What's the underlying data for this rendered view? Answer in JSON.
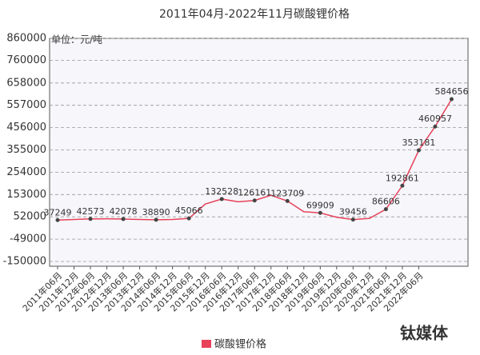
{
  "chart_data": {
    "type": "line",
    "title": "2011年04月-2022年11月碳酸锂价格",
    "y_label": "单位：元/吨",
    "watermark": "钛媒体",
    "categories": [
      "2011年06月",
      "2011年12月",
      "2012年06月",
      "2012年12月",
      "2013年06月",
      "2013年12月",
      "2014年06月",
      "2014年12月",
      "2015年06月",
      "2015年12月",
      "2016年06月",
      "2016年12月",
      "2017年06月",
      "2017年12月",
      "2018年06月",
      "2018年12月",
      "2019年06月",
      "2019年12月",
      "2020年06月",
      "2020年12月",
      "2021年06月",
      "2021年12月",
      "2022年06月",
      null,
      null
    ],
    "series": [
      {
        "name": "碳酸锂价格",
        "color": "#e8425a",
        "values": [
          37249,
          40000,
          42573,
          43000,
          42078,
          40000,
          38890,
          40000,
          45066,
          110000,
          132528,
          120000,
          126161,
          150000,
          123709,
          75000,
          69909,
          50000,
          39456,
          45000,
          86606,
          192861,
          353181,
          460957,
          584656
        ],
        "value_labels": [
          "37249",
          null,
          "42573",
          null,
          "42078",
          null,
          "38890",
          null,
          "45066",
          null,
          "132528",
          null,
          "126161",
          null,
          "123709",
          null,
          "69909",
          null,
          "39456",
          null,
          "86606",
          "192861",
          "353181",
          "460957",
          "584656"
        ]
      }
    ],
    "ylim": [
      -150000,
      860000
    ],
    "yticks": [
      -150000,
      -49000,
      52000,
      153000,
      254000,
      355000,
      456000,
      557000,
      658000,
      760000,
      860000
    ],
    "grid": true,
    "legend": "bottom"
  }
}
